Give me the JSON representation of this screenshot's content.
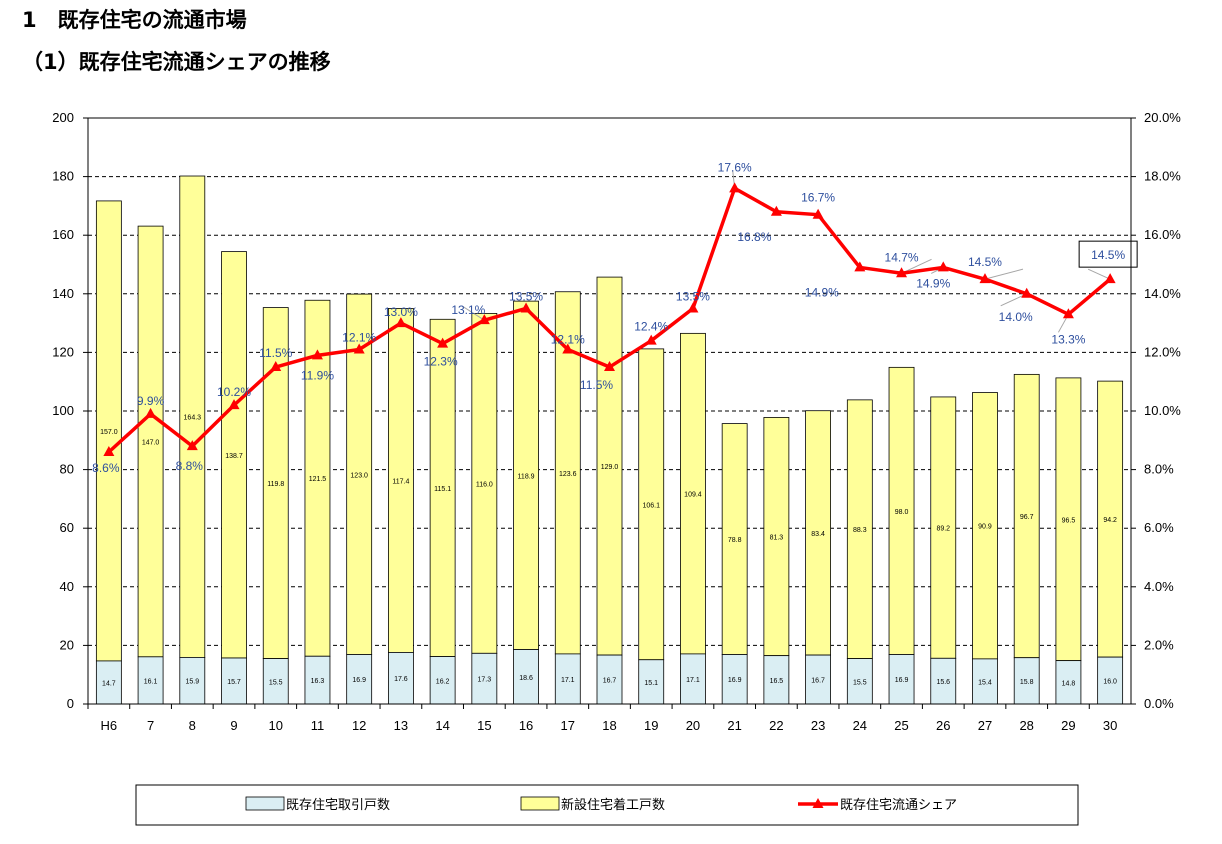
{
  "headings": {
    "section": "1　既存住宅の流通市場",
    "subsection": "（1）既存住宅流通シェアの推移"
  },
  "chart_data": {
    "type": "bar",
    "stacked": true,
    "categories": [
      "H6",
      "7",
      "8",
      "9",
      "10",
      "11",
      "12",
      "13",
      "14",
      "15",
      "16",
      "17",
      "18",
      "19",
      "20",
      "21",
      "22",
      "23",
      "24",
      "25",
      "26",
      "27",
      "28",
      "29",
      "30"
    ],
    "y_left": {
      "min": 0,
      "max": 200,
      "ticks": [
        "0",
        "20",
        "40",
        "60",
        "80",
        "100",
        "120",
        "140",
        "160",
        "180",
        "200"
      ]
    },
    "y_right": {
      "min": 0,
      "max": 20,
      "ticks": [
        "0.0%",
        "2.0%",
        "4.0%",
        "6.0%",
        "8.0%",
        "10.0%",
        "12.0%",
        "14.0%",
        "16.0%",
        "18.0%",
        "20.0%"
      ]
    },
    "grid": "dashed horizontal",
    "legend_position": "bottom",
    "series": [
      {
        "name": "既存住宅取引戸数",
        "type": "bar",
        "color": "#daeef3",
        "values": [
          14.7,
          16.1,
          15.9,
          15.7,
          15.5,
          16.3,
          16.9,
          17.6,
          16.2,
          17.3,
          18.6,
          17.1,
          16.7,
          15.1,
          17.1,
          16.9,
          16.5,
          16.7,
          15.5,
          16.9,
          15.6,
          15.4,
          15.8,
          14.8,
          16.0
        ],
        "labels": [
          "14.7",
          "16.1",
          "15.9",
          "15.7",
          "15.5",
          "16.3",
          "16.9",
          "17.6",
          "16.2",
          "17.3",
          "18.6",
          "17.1",
          "16.7",
          "15.1",
          "17.1",
          "16.9",
          "16.5",
          "16.7",
          "15.5",
          "16.9",
          "15.6",
          "15.4",
          "15.8",
          "14.8",
          "16.0"
        ]
      },
      {
        "name": "新設住宅着工戸数",
        "type": "bar",
        "color": "#ffff99",
        "values": [
          157.0,
          147.0,
          164.3,
          138.7,
          119.8,
          121.5,
          123.0,
          117.4,
          115.1,
          116.0,
          118.9,
          123.6,
          129.0,
          106.1,
          109.4,
          78.8,
          81.3,
          83.4,
          88.3,
          98.0,
          89.2,
          90.9,
          96.7,
          96.5,
          94.2
        ],
        "labels": [
          "157.0",
          "147.0",
          "164.3",
          "138.7",
          "119.8",
          "121.5",
          "123.0",
          "117.4",
          "115.1",
          "116.0",
          "118.9",
          "123.6",
          "129.0",
          "106.1",
          "109.4",
          "78.8",
          "81.3",
          "83.4",
          "88.3",
          "98.0",
          "89.2",
          "90.9",
          "96.7",
          "96.5",
          "94.2"
        ]
      },
      {
        "name": "既存住宅流通シェア",
        "type": "line",
        "color": "#ff0000",
        "axis": "right",
        "values": [
          8.6,
          9.9,
          8.8,
          10.2,
          11.5,
          11.9,
          12.1,
          13.0,
          12.3,
          13.1,
          13.5,
          12.1,
          11.5,
          12.4,
          13.5,
          17.6,
          16.8,
          16.7,
          14.9,
          14.7,
          14.9,
          14.5,
          14.0,
          13.3,
          14.5
        ],
        "labels": [
          "8.6%",
          "9.9%",
          "8.8%",
          "10.2%",
          "11.5%",
          "11.9%",
          "12.1%",
          "13.0%",
          "12.3%",
          "13.1%",
          "13.5%",
          "12.1%",
          "11.5%",
          "12.4%",
          "13.5%",
          "17.6%",
          "16.8%",
          "16.7%",
          "14.9%",
          "14.7%",
          "14.9%",
          "14.5%",
          "14.0%",
          "13.3%",
          "14.5%"
        ]
      }
    ]
  }
}
